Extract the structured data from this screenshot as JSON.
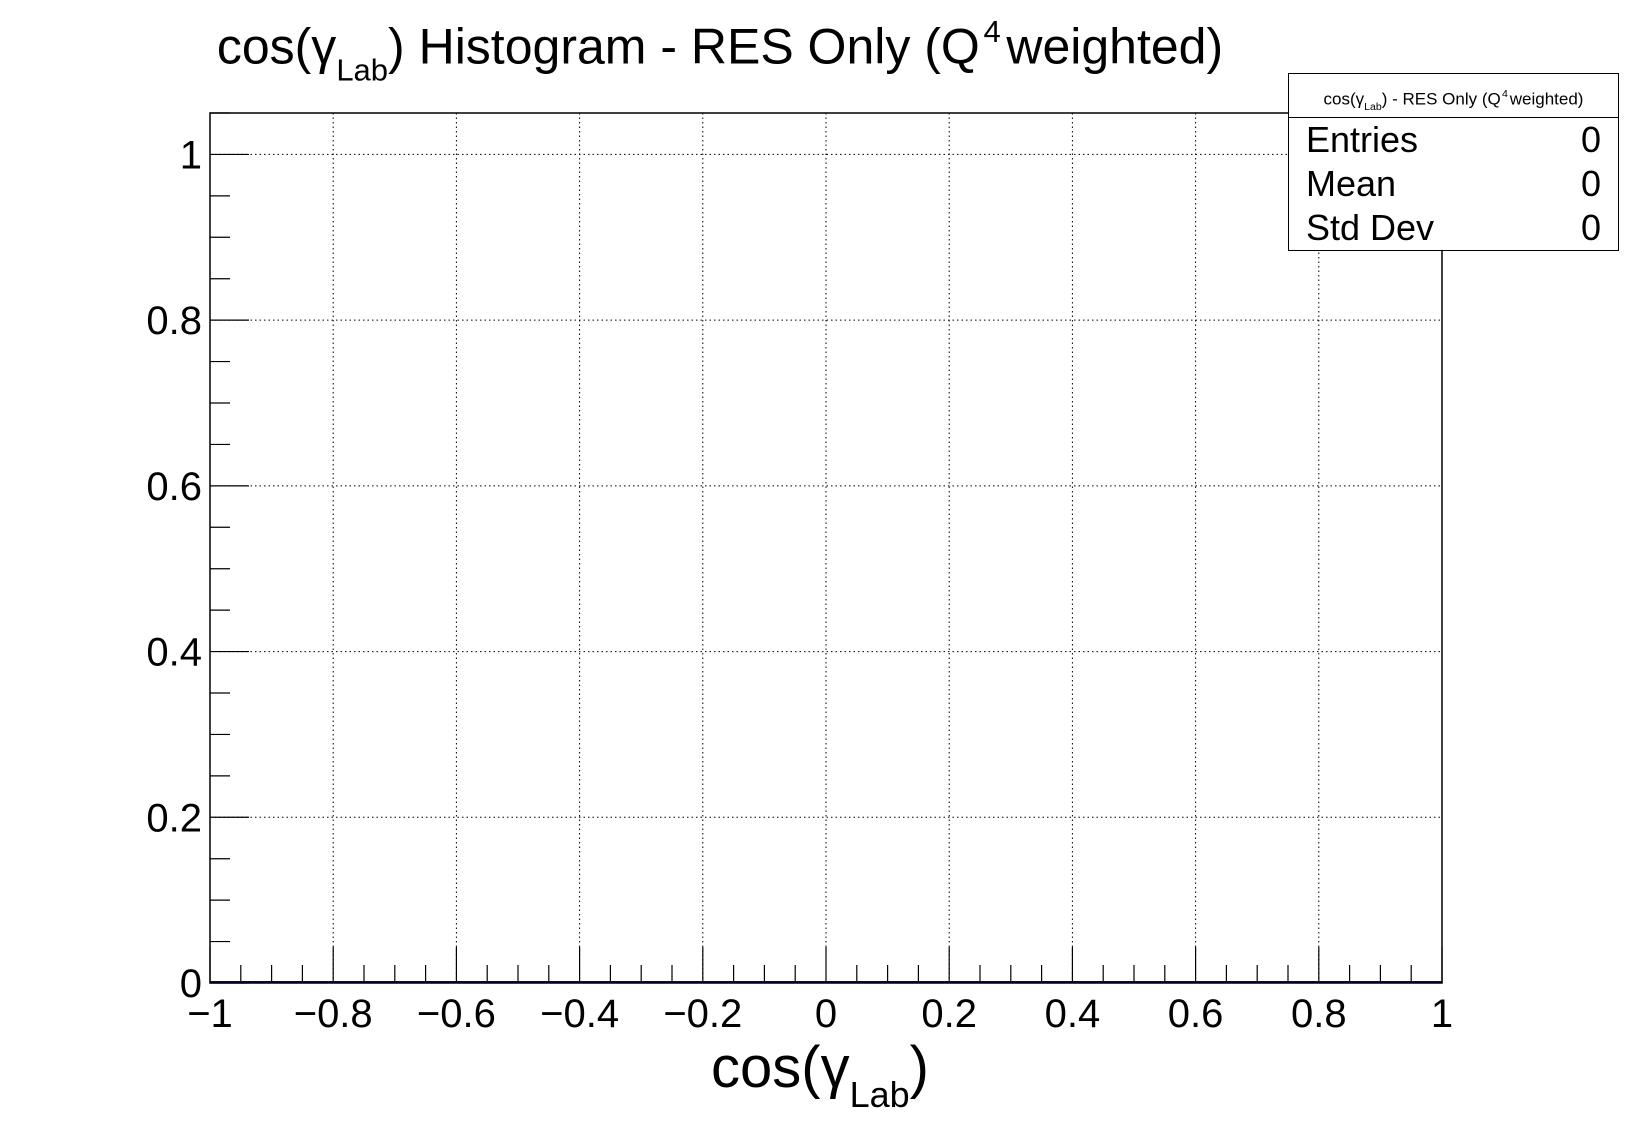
{
  "title": {
    "pre": "cos(γ",
    "sub": "Lab",
    "mid": ") Histogram - RES Only (Q",
    "sup": "4",
    "post": "weighted)"
  },
  "xaxis_title": {
    "pre": "cos(γ",
    "sub": "Lab",
    "post": ")"
  },
  "stats_box": {
    "header": {
      "pre": "cos(γ",
      "sub": "Lab",
      "mid": ") - RES Only (Q",
      "sup": "4",
      "post": "weighted)"
    },
    "rows": [
      {
        "label": "Entries",
        "value": "0"
      },
      {
        "label": "Mean",
        "value": "0"
      },
      {
        "label": "Std Dev",
        "value": "0"
      }
    ]
  },
  "chart_data": {
    "type": "bar",
    "title": "cos(γ_Lab) Histogram - RES Only (Q^4 weighted)",
    "xlabel": "cos(γ_Lab)",
    "ylabel": "",
    "xlim": [
      -1,
      1
    ],
    "ylim": [
      0,
      1.05
    ],
    "x_ticks": [
      -1,
      -0.8,
      -0.6,
      -0.4,
      -0.2,
      0,
      0.2,
      0.4,
      0.6,
      0.8,
      1
    ],
    "x_tick_labels": [
      "−1",
      "−0.8",
      "−0.6",
      "−0.4",
      "−0.2",
      "0",
      "0.2",
      "0.4",
      "0.6",
      "0.8",
      "1"
    ],
    "y_ticks": [
      0,
      0.2,
      0.4,
      0.6,
      0.8,
      1
    ],
    "y_tick_labels": [
      "0",
      "0.2",
      "0.4",
      "0.6",
      "0.8",
      "1"
    ],
    "x_minor_step": 0.05,
    "y_minor_step": 0.05,
    "grid": true,
    "values": [],
    "line_color": "#000099",
    "entries": 0,
    "mean": 0,
    "std_dev": 0
  }
}
